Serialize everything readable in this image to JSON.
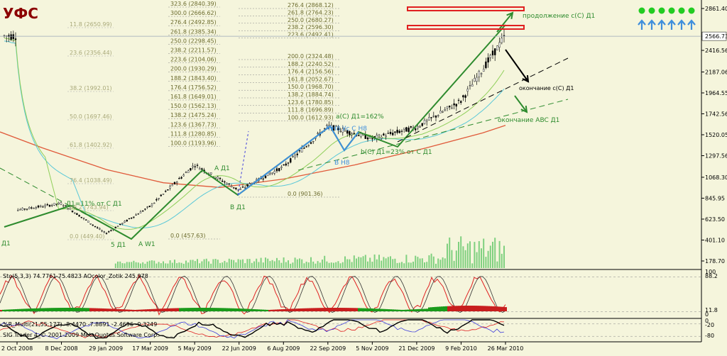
{
  "chart_data": {
    "type": "line",
    "title": "УФС",
    "y_ticks": [
      "2861.40",
      "2566.73",
      "2416.56",
      "2187.06",
      "1964.55",
      "1742.56",
      "1520.05",
      "1297.56",
      "1068.30",
      "845.95",
      "623.50",
      "401.10",
      "178.70"
    ],
    "y_range": [
      178.7,
      2861.4
    ],
    "current_price_label": "2566.73",
    "x_ticks": [
      "2 Oct 2008",
      "8 Dec 2008",
      "29 Jan 2009",
      "17 Mar 2009",
      "5 May 2009",
      "22 Jun 2009",
      "6 Aug 2009",
      "22 Sep 2009",
      "5 Nov 2009",
      "21 Dec 2009",
      "9 Feb 2010",
      "26 Mar 2010"
    ],
    "close_series": [
      [
        "2 Oct 2008",
        720
      ],
      [
        "8 Dec 2008",
        790
      ],
      [
        "29 Jan 2009",
        470
      ],
      [
        "17 Mar 2009",
        760
      ],
      [
        "5 May 2009",
        1200
      ],
      [
        "22 Jun 2009",
        930
      ],
      [
        "6 Aug 2009",
        1180
      ],
      [
        "22 Sep 2009",
        1610
      ],
      [
        "5 Nov 2009",
        1480
      ],
      [
        "21 Dec 2009",
        1600
      ],
      [
        "9 Feb 2010",
        1880
      ],
      [
        "26 Mar 2010",
        2570
      ]
    ],
    "fibo_left": [
      "323.6 (2840.39)",
      "300.0 (2666.62)",
      "276.4 (2492.85)",
      "261.8 (2385.34)",
      "250.0 (2298.45)",
      "238.2 (2211.57)",
      "223.6 (2104.06)",
      "200.0 (1930.29)",
      "188.2 (1843.40)",
      "176.4 (1756.52)",
      "161.8 (1649.01)",
      "150.0 (1562.13)",
      "138.2 (1475.24)",
      "123.6 (1367.73)",
      "111.8 (1280.85)",
      "100.0 (1193.96)",
      "0.0 (457.63)"
    ],
    "fibo_faint": [
      "11.8 (2650.99)",
      "23.6 (2356.44)",
      "38.2 (1992.01)",
      "50.0 (1697.46)",
      "61.8 (1402.92)",
      "76.4 (1038.49)",
      "88.2 (743.94)",
      "0.0 (449.40)"
    ],
    "fibo_right": [
      "276.4 (2868.12)",
      "261.8 (2764.23)",
      "250.0 (2680.27)",
      "238.2 (2596.30)",
      "223.6 (2492.41)",
      "200.0 (2324.48)",
      "188.2 (2240.52)",
      "176.4 (2156.56)",
      "161.8 (2052.67)",
      "150.0 (1968.70)",
      "138.2 (1884.74)",
      "123.6 (1780.85)",
      "111.8 (1696.89)",
      "100.0 (1612.93)",
      "0.0 (901.36)"
    ],
    "annotations": {
      "a_d1": "A Д1",
      "b_d1": "B Д1",
      "five_d1": "5 Д1",
      "a_w1": "A W1",
      "d1_left": "Д1",
      "ratio_left": "Д1=11% от C Д1",
      "ratio_top": "a(C) Д1=162%",
      "ratio_mid": "b(C) Д1=23% от C Д1",
      "a_h8": "A H8",
      "c_h8": "Ус C H8",
      "b_h8": "B H8",
      "continuation": "продолжение c(C) Д1",
      "end_c": "окончание c(C) Д1",
      "end_abc": "окончание ABC Д1"
    },
    "indicators": {
      "osc1_label": "Sto(5,3,3) 74.7761 75.4823  AOcolor_Zotik 245.978",
      "osc1_ticks": [
        "100",
        "88.2",
        "11.8",
        "0"
      ],
      "osc2_label": "%R_Multi(21,55,177) -8.4470 -7.8891 -2.4696 -0.3249",
      "osc2_sub": "SIG Trader 4_© 2001-2009 MetaQuotes Software Corp.",
      "osc2_ticks": [
        "0",
        "-20",
        "-80"
      ]
    },
    "signal_dots": 6,
    "signal_arrows": 6,
    "colors": {
      "background": "#f5f5dc",
      "candle": "#000000",
      "wave": "#2e8b2e",
      "wave_blue": "#3f8fdc",
      "ma_red": "#e05a3a",
      "ma_green": "#8fcf5a",
      "ma_cyan": "#5ac8d8",
      "target_box": "#e02020",
      "dots": "#22cc22",
      "arrows": "#3f8fdc"
    }
  }
}
